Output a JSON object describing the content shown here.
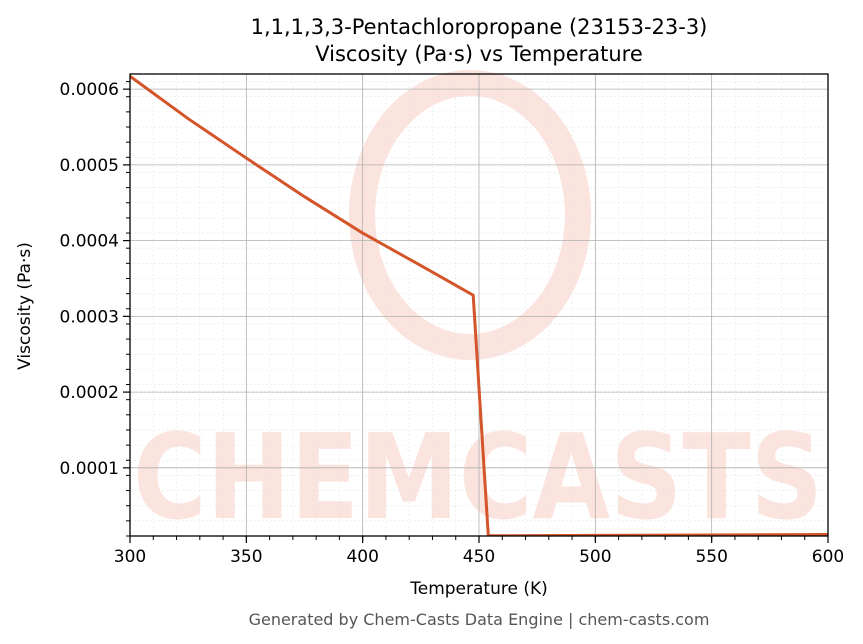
{
  "chart_data": {
    "type": "line",
    "title": "1,1,1,3,3-Pentachloropropane (23153-23-3)",
    "subtitle": "Viscosity (Pa·s) vs Temperature",
    "xlabel": "Temperature (K)",
    "ylabel": "Viscosity (Pa·s)",
    "xlim": [
      300,
      600
    ],
    "ylim": [
      1e-05,
      0.00062
    ],
    "x_ticks": [
      "300",
      "350",
      "400",
      "450",
      "500",
      "550",
      "600"
    ],
    "y_ticks": [
      "0.0001",
      "0.0002",
      "0.0003",
      "0.0004",
      "0.0005",
      "0.0006"
    ],
    "grid": true,
    "series": [
      {
        "color": "#d4552a",
        "x": [
          300,
          325,
          350,
          375,
          400,
          425,
          447.5,
          454,
          500,
          550,
          600
        ],
        "y": [
          0.000617,
          0.000561,
          0.000509,
          0.000458,
          0.00041,
          0.000367,
          0.000328,
          1.03e-05,
          1.08e-05,
          1.14e-05,
          1.2e-05
        ]
      }
    ]
  },
  "watermark": {
    "text": "CHEMCASTS",
    "color": "#fbe3de"
  },
  "footer": "Generated by Chem-Casts Data Engine | chem-casts.com"
}
